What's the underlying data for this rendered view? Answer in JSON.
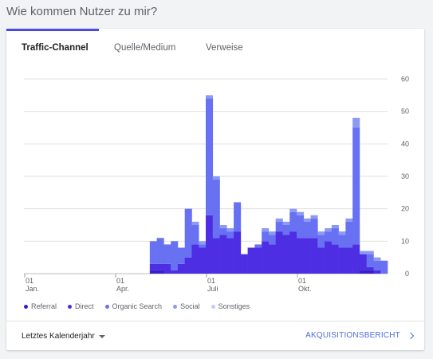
{
  "page": {
    "title": "Wie kommen Nutzer zu mir?"
  },
  "tabs": [
    {
      "label": "Traffic-Channel",
      "active": true
    },
    {
      "label": "Quelle/Medium",
      "active": false
    },
    {
      "label": "Verweise",
      "active": false
    }
  ],
  "footer": {
    "date_range_label": "Letztes Kalenderjahr",
    "report_link_label": "AKQUISITIONSBERICHT"
  },
  "colors": {
    "accent": "#4a4ae3",
    "referral": "#3a1fc7",
    "direct": "#4d2ee3",
    "organic_search": "#6871f2",
    "social": "#8d9af5",
    "sonstiges": "#c5cbf9",
    "link": "#4a6de5"
  },
  "chart_data": {
    "type": "bar",
    "stacked": true,
    "title": "",
    "xlabel": "",
    "ylabel": "",
    "ylim": [
      0,
      60
    ],
    "yticks": [
      "0",
      "10",
      "20",
      "30",
      "40",
      "50",
      "60"
    ],
    "xticks": [
      {
        "week": 0,
        "day": "01",
        "month": "Jan."
      },
      {
        "week": 13,
        "day": "01",
        "month": "Apr."
      },
      {
        "week": 26,
        "day": "01",
        "month": "Juli"
      },
      {
        "week": 39,
        "day": "01",
        "month": "Okt."
      }
    ],
    "weeks": 52,
    "series": [
      {
        "name": "Referral",
        "color": "#3a1fc7",
        "values": [
          0,
          0,
          0,
          0,
          0,
          0,
          0,
          0,
          0,
          0,
          0,
          0,
          0,
          0,
          0,
          0,
          0,
          0,
          1,
          1,
          0,
          0,
          0,
          0,
          0,
          0,
          0,
          0,
          0,
          0,
          0,
          0,
          0,
          0,
          0,
          0,
          0,
          0,
          0,
          0,
          0,
          0,
          0,
          0,
          0,
          0,
          0,
          0,
          1,
          1,
          0,
          0
        ]
      },
      {
        "name": "Direct",
        "color": "#4d2ee3",
        "values": [
          0,
          0,
          0,
          0,
          0,
          0,
          0,
          0,
          0,
          0,
          0,
          0,
          0,
          0,
          0,
          0,
          0,
          0,
          2,
          2,
          3,
          1,
          3,
          5,
          9,
          8,
          18,
          11,
          12,
          11,
          13,
          6,
          8,
          8,
          10,
          9,
          13,
          12,
          13,
          11,
          11,
          11,
          8,
          10,
          9,
          8,
          8,
          9,
          5,
          1,
          1,
          0
        ]
      },
      {
        "name": "Organic Search",
        "color": "#6871f2",
        "values": [
          0,
          0,
          0,
          0,
          0,
          0,
          0,
          0,
          0,
          0,
          0,
          0,
          0,
          0,
          0,
          0,
          0,
          0,
          7,
          8,
          6,
          9,
          5,
          15,
          6,
          1,
          36,
          18,
          2,
          2,
          9,
          0,
          0,
          1,
          3,
          3,
          3,
          3,
          6,
          7,
          5,
          6,
          4,
          3,
          5,
          4,
          8,
          36,
          0,
          4,
          3,
          4
        ]
      },
      {
        "name": "Social",
        "color": "#8d9af5",
        "values": [
          0,
          0,
          0,
          0,
          0,
          0,
          0,
          0,
          0,
          0,
          0,
          0,
          0,
          0,
          0,
          0,
          0,
          0,
          0,
          0,
          0,
          0,
          0,
          0,
          1,
          1,
          1,
          1,
          1,
          1,
          0,
          0,
          0,
          0,
          1,
          1,
          1,
          1,
          1,
          1,
          1,
          1,
          1,
          1,
          1,
          1,
          1,
          3,
          1,
          1,
          1,
          0
        ]
      },
      {
        "name": "Sonstiges",
        "color": "#c5cbf9",
        "values": [
          0,
          0,
          0,
          0,
          0,
          0,
          0,
          0,
          0,
          0,
          0,
          0,
          0,
          0,
          0,
          0,
          0,
          0,
          0,
          0,
          0,
          0,
          0,
          0,
          0,
          0,
          0,
          0,
          0,
          0,
          0,
          0,
          0,
          0,
          0,
          0,
          0,
          0,
          0,
          0,
          0,
          0,
          0,
          0,
          0,
          0,
          0,
          0,
          0,
          0,
          0,
          0
        ]
      }
    ],
    "legend_position": "bottom"
  }
}
